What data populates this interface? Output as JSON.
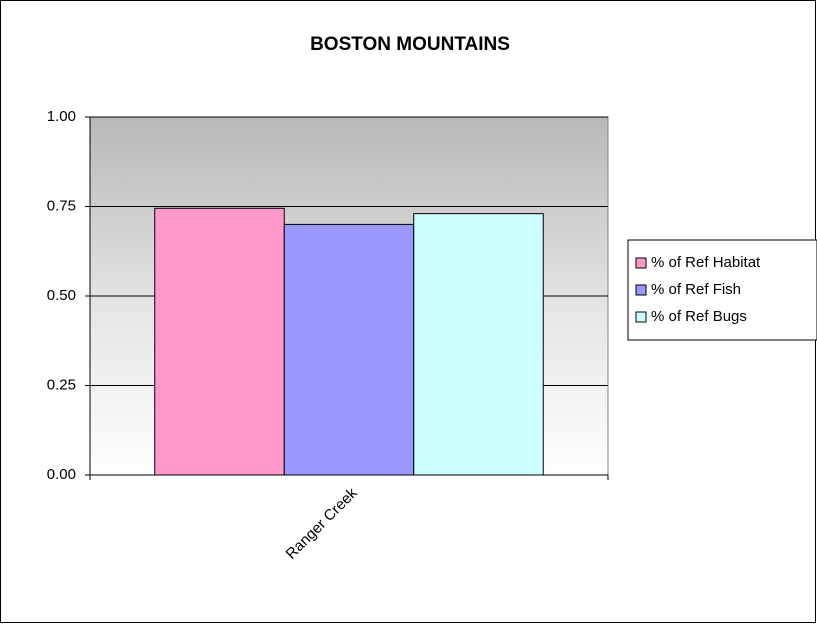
{
  "chart_data": {
    "type": "bar",
    "title": "BOSTON MOUNTAINS",
    "categories": [
      "Ranger Creek"
    ],
    "series": [
      {
        "name": "% of Ref Habitat",
        "color": "#ff99cc",
        "values": [
          0.745
        ]
      },
      {
        "name": "% of Ref Fish",
        "color": "#9999ff",
        "values": [
          0.7
        ]
      },
      {
        "name": "% of Ref Bugs",
        "color": "#ccffff",
        "values": [
          0.73
        ]
      }
    ],
    "ylim": [
      0,
      1
    ],
    "yticks": [
      {
        "value": 0,
        "label": "0.00"
      },
      0.25,
      {
        "value": 0.5,
        "label": "0.50"
      },
      0.75,
      {
        "value": 1,
        "label": "1.00"
      }
    ],
    "grid": true,
    "legend": "right"
  }
}
